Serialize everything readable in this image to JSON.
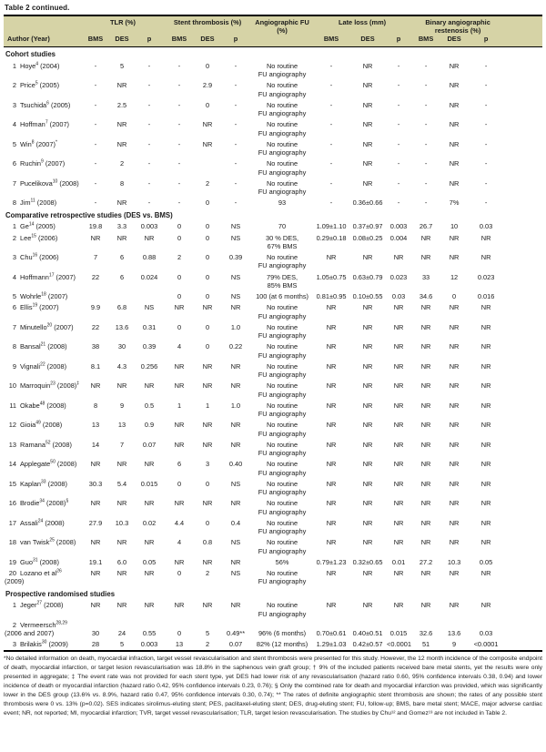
{
  "title": "Table 2 continued.",
  "colors": {
    "header_bg": "#d6d3a6",
    "rule": "#000000"
  },
  "header": {
    "author": "Author (Year)",
    "groups": [
      {
        "label": "TLR (%)",
        "subs": [
          "BMS",
          "DES",
          "p"
        ]
      },
      {
        "label": "Stent thrombosis (%)",
        "subs": [
          "BMS",
          "DES",
          "p"
        ]
      },
      {
        "label": "Angiographic FU (%)",
        "subs": []
      },
      {
        "label": "Late loss (mm)",
        "subs": [
          "BMS",
          "DES",
          "p"
        ]
      },
      {
        "label": "Binary angiographic restenosis (%)",
        "subs": [
          "BMS",
          "DES",
          "p"
        ]
      }
    ]
  },
  "sections": [
    {
      "label": "Cohort studies",
      "rows": [
        {
          "n": "1",
          "name": "Hoye",
          "sup": "4",
          "year": "(2004)",
          "mark": "",
          "c": [
            "-",
            "5",
            "-",
            "-",
            "0",
            "-",
            "No routine\nFU angiography",
            "-",
            "NR",
            "-",
            "-",
            "NR",
            "-"
          ]
        },
        {
          "n": "2",
          "name": "Price",
          "sup": "5",
          "year": "(2005)",
          "mark": "",
          "c": [
            "-",
            "NR",
            "-",
            "-",
            "2.9",
            "-",
            "No routine\nFU angiography",
            "-",
            "NR",
            "-",
            "-",
            "NR",
            "-"
          ]
        },
        {
          "n": "3",
          "name": "Tsuchida",
          "sup": "6",
          "year": "(2005)",
          "mark": "",
          "c": [
            "-",
            "2.5",
            "-",
            "-",
            "0",
            "-",
            "No routine\nFU angiography",
            "-",
            "NR",
            "-",
            "-",
            "NR",
            "-"
          ]
        },
        {
          "n": "4",
          "name": "Hoffman",
          "sup": "7",
          "year": "(2007)",
          "mark": "",
          "c": [
            "-",
            "NR",
            "-",
            "-",
            "NR",
            "-",
            "No routine\nFU angiography",
            "-",
            "NR",
            "-",
            "-",
            "NR",
            "-"
          ]
        },
        {
          "n": "5",
          "name": "Win",
          "sup": "8",
          "year": "(2007)",
          "mark": "*",
          "c": [
            "-",
            "NR",
            "-",
            "-",
            "NR",
            "-",
            "No routine\nFU angiography",
            "-",
            "NR",
            "-",
            "-",
            "NR",
            "-"
          ]
        },
        {
          "n": "6",
          "name": "Ruchin",
          "sup": "9",
          "year": "(2007)",
          "mark": "",
          "c": [
            "-",
            "2",
            "-",
            "-",
            "",
            "-",
            "No routine\nFU angiography",
            "-",
            "NR",
            "-",
            "-",
            "NR",
            "-"
          ]
        },
        {
          "n": "7",
          "name": "Pucelikova",
          "sup": "10",
          "year": "(2008)",
          "mark": "",
          "c": [
            "-",
            "8",
            "-",
            "-",
            "2",
            "-",
            "No routine\nFU angiography",
            "-",
            "NR",
            "-",
            "-",
            "NR",
            "-"
          ]
        },
        {
          "n": "8",
          "name": "Jim",
          "sup": "11",
          "year": "(2008)",
          "mark": "",
          "c": [
            "-",
            "NR",
            "-",
            "-",
            "0",
            "-",
            "93",
            "-",
            "0.36±0.66",
            "-",
            "-",
            "7%",
            "-"
          ]
        }
      ]
    },
    {
      "label": "Comparative retrospective studies (DES vs. BMS)",
      "rows": [
        {
          "n": "1",
          "name": "Ge",
          "sup": "14",
          "year": "(2005)",
          "mark": "",
          "c": [
            "19.8",
            "3.3",
            "0.003",
            "0",
            "0",
            "NS",
            "70",
            "1.09±1.10",
            "0.37±0.97",
            "0.003",
            "26.7",
            "10",
            "0.03"
          ]
        },
        {
          "n": "2",
          "name": "Lee",
          "sup": "15",
          "year": "(2006)",
          "mark": "",
          "c": [
            "NR",
            "NR",
            "NR",
            "0",
            "0",
            "NS",
            "30 % DES,\n67% BMS",
            "0.29±0.18",
            "0.08±0.25",
            "0.004",
            "NR",
            "NR",
            "NR"
          ]
        },
        {
          "n": "3",
          "name": "Chu",
          "sup": "16",
          "year": "(2006)",
          "mark": "",
          "c": [
            "7",
            "6",
            "0.88",
            "2",
            "0",
            "0.39",
            "No routine\nFU angiography",
            "NR",
            "NR",
            "NR",
            "NR",
            "NR",
            "NR"
          ]
        },
        {
          "n": "4",
          "name": "Hoffmann",
          "sup": "17",
          "year": "(2007)",
          "mark": "",
          "c": [
            "22",
            "6",
            "0.024",
            "0",
            "0",
            "NS",
            "79% DES,\n85% BMS",
            "1.05±0.75",
            "0.63±0.79",
            "0.023",
            "33",
            "12",
            "0.023"
          ]
        },
        {
          "n": "5",
          "name": "Wohrle",
          "sup": "18",
          "year": "(2007)",
          "mark": "",
          "c": [
            "",
            "",
            "",
            "0",
            "0",
            "NS",
            "100 (at 6 months)",
            "0.81±0.95",
            "0.10±0.55",
            "0.03",
            "34.6",
            "0",
            "0.016"
          ]
        },
        {
          "n": "6",
          "name": "Ellis",
          "sup": "19",
          "year": "(2007)",
          "mark": "",
          "c": [
            "9.9",
            "6.8",
            "NS",
            "NR",
            "NR",
            "NR",
            "No routine\nFU angiography",
            "NR",
            "NR",
            "NR",
            "NR",
            "NR",
            "NR"
          ]
        },
        {
          "n": "7",
          "name": "Minutello",
          "sup": "20",
          "year": "(2007)",
          "mark": "",
          "c": [
            "22",
            "13.6",
            "0.31",
            "0",
            "0",
            "1.0",
            "No routine\nFU angiography",
            "NR",
            "NR",
            "NR",
            "NR",
            "NR",
            "NR"
          ]
        },
        {
          "n": "8",
          "name": "Bansal",
          "sup": "21",
          "year": "(2008)",
          "mark": "",
          "c": [
            "38",
            "30",
            "0.39",
            "4",
            "0",
            "0.22",
            "No routine\nFU angiography",
            "NR",
            "NR",
            "NR",
            "NR",
            "NR",
            "NR"
          ]
        },
        {
          "n": "9",
          "name": "Vignali",
          "sup": "22",
          "year": "(2008)",
          "mark": "",
          "c": [
            "8.1",
            "4.3",
            "0.256",
            "NR",
            "NR",
            "NR",
            "No routine\nFU angiography",
            "NR",
            "NR",
            "NR",
            "NR",
            "NR",
            "NR"
          ]
        },
        {
          "n": "10",
          "name": "Marroquin",
          "sup": "23",
          "year": "(2008)",
          "mark": "‡",
          "c": [
            "NR",
            "NR",
            "NR",
            "NR",
            "NR",
            "NR",
            "No routine\nFU angiography",
            "NR",
            "NR",
            "NR",
            "NR",
            "NR",
            "NR"
          ]
        },
        {
          "n": "11",
          "name": "Okabe",
          "sup": "48",
          "year": "(2008)",
          "mark": "",
          "c": [
            "8",
            "9",
            "0.5",
            "1",
            "1",
            "1.0",
            "No routine\nFU angiography",
            "NR",
            "NR",
            "NR",
            "NR",
            "NR",
            "NR"
          ]
        },
        {
          "n": "12",
          "name": "Gioia",
          "sup": "49",
          "year": "(2008)",
          "mark": "",
          "c": [
            "13",
            "13",
            "0.9",
            "NR",
            "NR",
            "NR",
            "No routine\nFU angiography",
            "NR",
            "NR",
            "NR",
            "NR",
            "NR",
            "NR"
          ]
        },
        {
          "n": "13",
          "name": "Ramana",
          "sup": "52",
          "year": "(2008)",
          "mark": "",
          "c": [
            "14",
            "7",
            "0.07",
            "NR",
            "NR",
            "NR",
            "No routine\nFU angiography",
            "NR",
            "NR",
            "NR",
            "NR",
            "NR",
            "NR"
          ]
        },
        {
          "n": "14",
          "name": "Applegate",
          "sup": "50",
          "year": "(2008)",
          "mark": "",
          "c": [
            "NR",
            "NR",
            "NR",
            "6",
            "3",
            "0.40",
            "No routine\nFU angiography",
            "NR",
            "NR",
            "NR",
            "NR",
            "NR",
            "NR"
          ]
        },
        {
          "n": "15",
          "name": "Kaplan",
          "sup": "33",
          "year": "(2008)",
          "mark": "",
          "c": [
            "30.3",
            "5.4",
            "0.015",
            "0",
            "0",
            "NS",
            "No routine\nFU angiography",
            "NR",
            "NR",
            "NR",
            "NR",
            "NR",
            "NR"
          ]
        },
        {
          "n": "16",
          "name": "Brodie",
          "sup": "34",
          "year": "(2008)",
          "mark": "§",
          "c": [
            "NR",
            "NR",
            "NR",
            "NR",
            "NR",
            "NR",
            "No routine\nFU angiography",
            "NR",
            "NR",
            "NR",
            "NR",
            "NR",
            "NR"
          ]
        },
        {
          "n": "17",
          "name": "Assali",
          "sup": "24",
          "year": "(2008)",
          "mark": "",
          "c": [
            "27.9",
            "10.3",
            "0.02",
            "4.4",
            "0",
            "0.4",
            "No routine\nFU angiography",
            "NR",
            "NR",
            "NR",
            "NR",
            "NR",
            "NR"
          ]
        },
        {
          "n": "18",
          "name": "van Twisk",
          "sup": "25",
          "year": "(2008)",
          "mark": "",
          "c": [
            "NR",
            "NR",
            "NR",
            "4",
            "0.8",
            "NS",
            "No routine\nFU angiography",
            "NR",
            "NR",
            "NR",
            "NR",
            "NR",
            "NR"
          ]
        },
        {
          "n": "19",
          "name": "Guo",
          "sup": "31",
          "year": "(2008)",
          "mark": "",
          "c": [
            "19.1",
            "6.0",
            "0.05",
            "NR",
            "NR",
            "NR",
            "56%",
            "0.79±1.23",
            "0.32±0.65",
            "0.01",
            "27.2",
            "10.3",
            "0.05"
          ]
        },
        {
          "n": "20",
          "name": "Lozano et al",
          "sup": "26",
          "year": "(2009)",
          "mark": "",
          "c": [
            "NR",
            "NR",
            "NR",
            "0",
            "2",
            "NS",
            "No routine\nFU angiography",
            "NR",
            "NR",
            "NR",
            "NR",
            "NR",
            "NR"
          ]
        }
      ]
    },
    {
      "label": "Prospective randomised studies",
      "rows": [
        {
          "n": "1",
          "name": "Jeger",
          "sup": "27",
          "year": "(2008)",
          "mark": "",
          "c": [
            "NR",
            "NR",
            "NR",
            "NR",
            "NR",
            "NR",
            "No routine\nFU angiography",
            "NR",
            "NR",
            "NR",
            "NR",
            "NR",
            "NR"
          ]
        },
        {
          "n": "2",
          "name": "Vermeersch",
          "sup": "28,29",
          "year": "(2006 and 2007)",
          "mark": "",
          "nl": true,
          "c": [
            "30",
            "24",
            "0.55",
            "0",
            "5",
            "0.49**",
            "96% (6 months)",
            "0.70±0.61",
            "0.40±0.51",
            "0.015",
            "32.6",
            "13.6",
            "0.03"
          ]
        },
        {
          "n": "3",
          "name": "Brilakis",
          "sup": "30",
          "year": "(2009)",
          "mark": "",
          "c": [
            "28",
            "5",
            "0.003",
            "13",
            "2",
            "0.07",
            "82% (12 months)",
            "1.29±1.03",
            "0.42±0.57",
            "<0.0001",
            "51",
            "9",
            "<0.0001"
          ]
        }
      ]
    }
  ],
  "footnote": "*No detailed information on death, myocardial infraction, target vessel revascularisation and stent thrombosis were presented for this study. However, the 12 month incidence of the composite endpoint of death, myocardial infarction, or target lesion revascularisation was 18.8% in the saphenous vein graft group; † 9% of the included patients received bare metal stents, yet the results were only presented in aggregate; ‡ The event rate was not provided for each stent type, yet DES had lower risk of any revascularisation (hazard ratio 0.60, 95% confidence intervals 0.38, 0.94) and lower incidence of death or myocardial infarction (hazard ratio 0.42, 95% confidence intervals 0.23, 0.76); § Only the combined rate for death and myocardial infarction was provided, which was significantly lower in the DES group (13.6% vs. 8.9%, hazard ratio 0.47, 95% confidence intervals 0.30, 0.74); ** The rates of definite angiographic stent thrombosis are shown; the rates of any possible stent thrombosis were 0 vs. 13% (p=0.02). SES indicates sirolimus-eluting stent; PES, paclitaxel-eluting stent; DES, drug-eluting stent; FU, follow-up; BMS, bare metal stent; MACE, major adverse cardiac event; NR, not reported; MI, myocardial infarction; TVR, target vessel revascularisation; TLR, target lesion revascularisation. The studies by Chu¹² and Gomez¹³ are not included in Table 2."
}
